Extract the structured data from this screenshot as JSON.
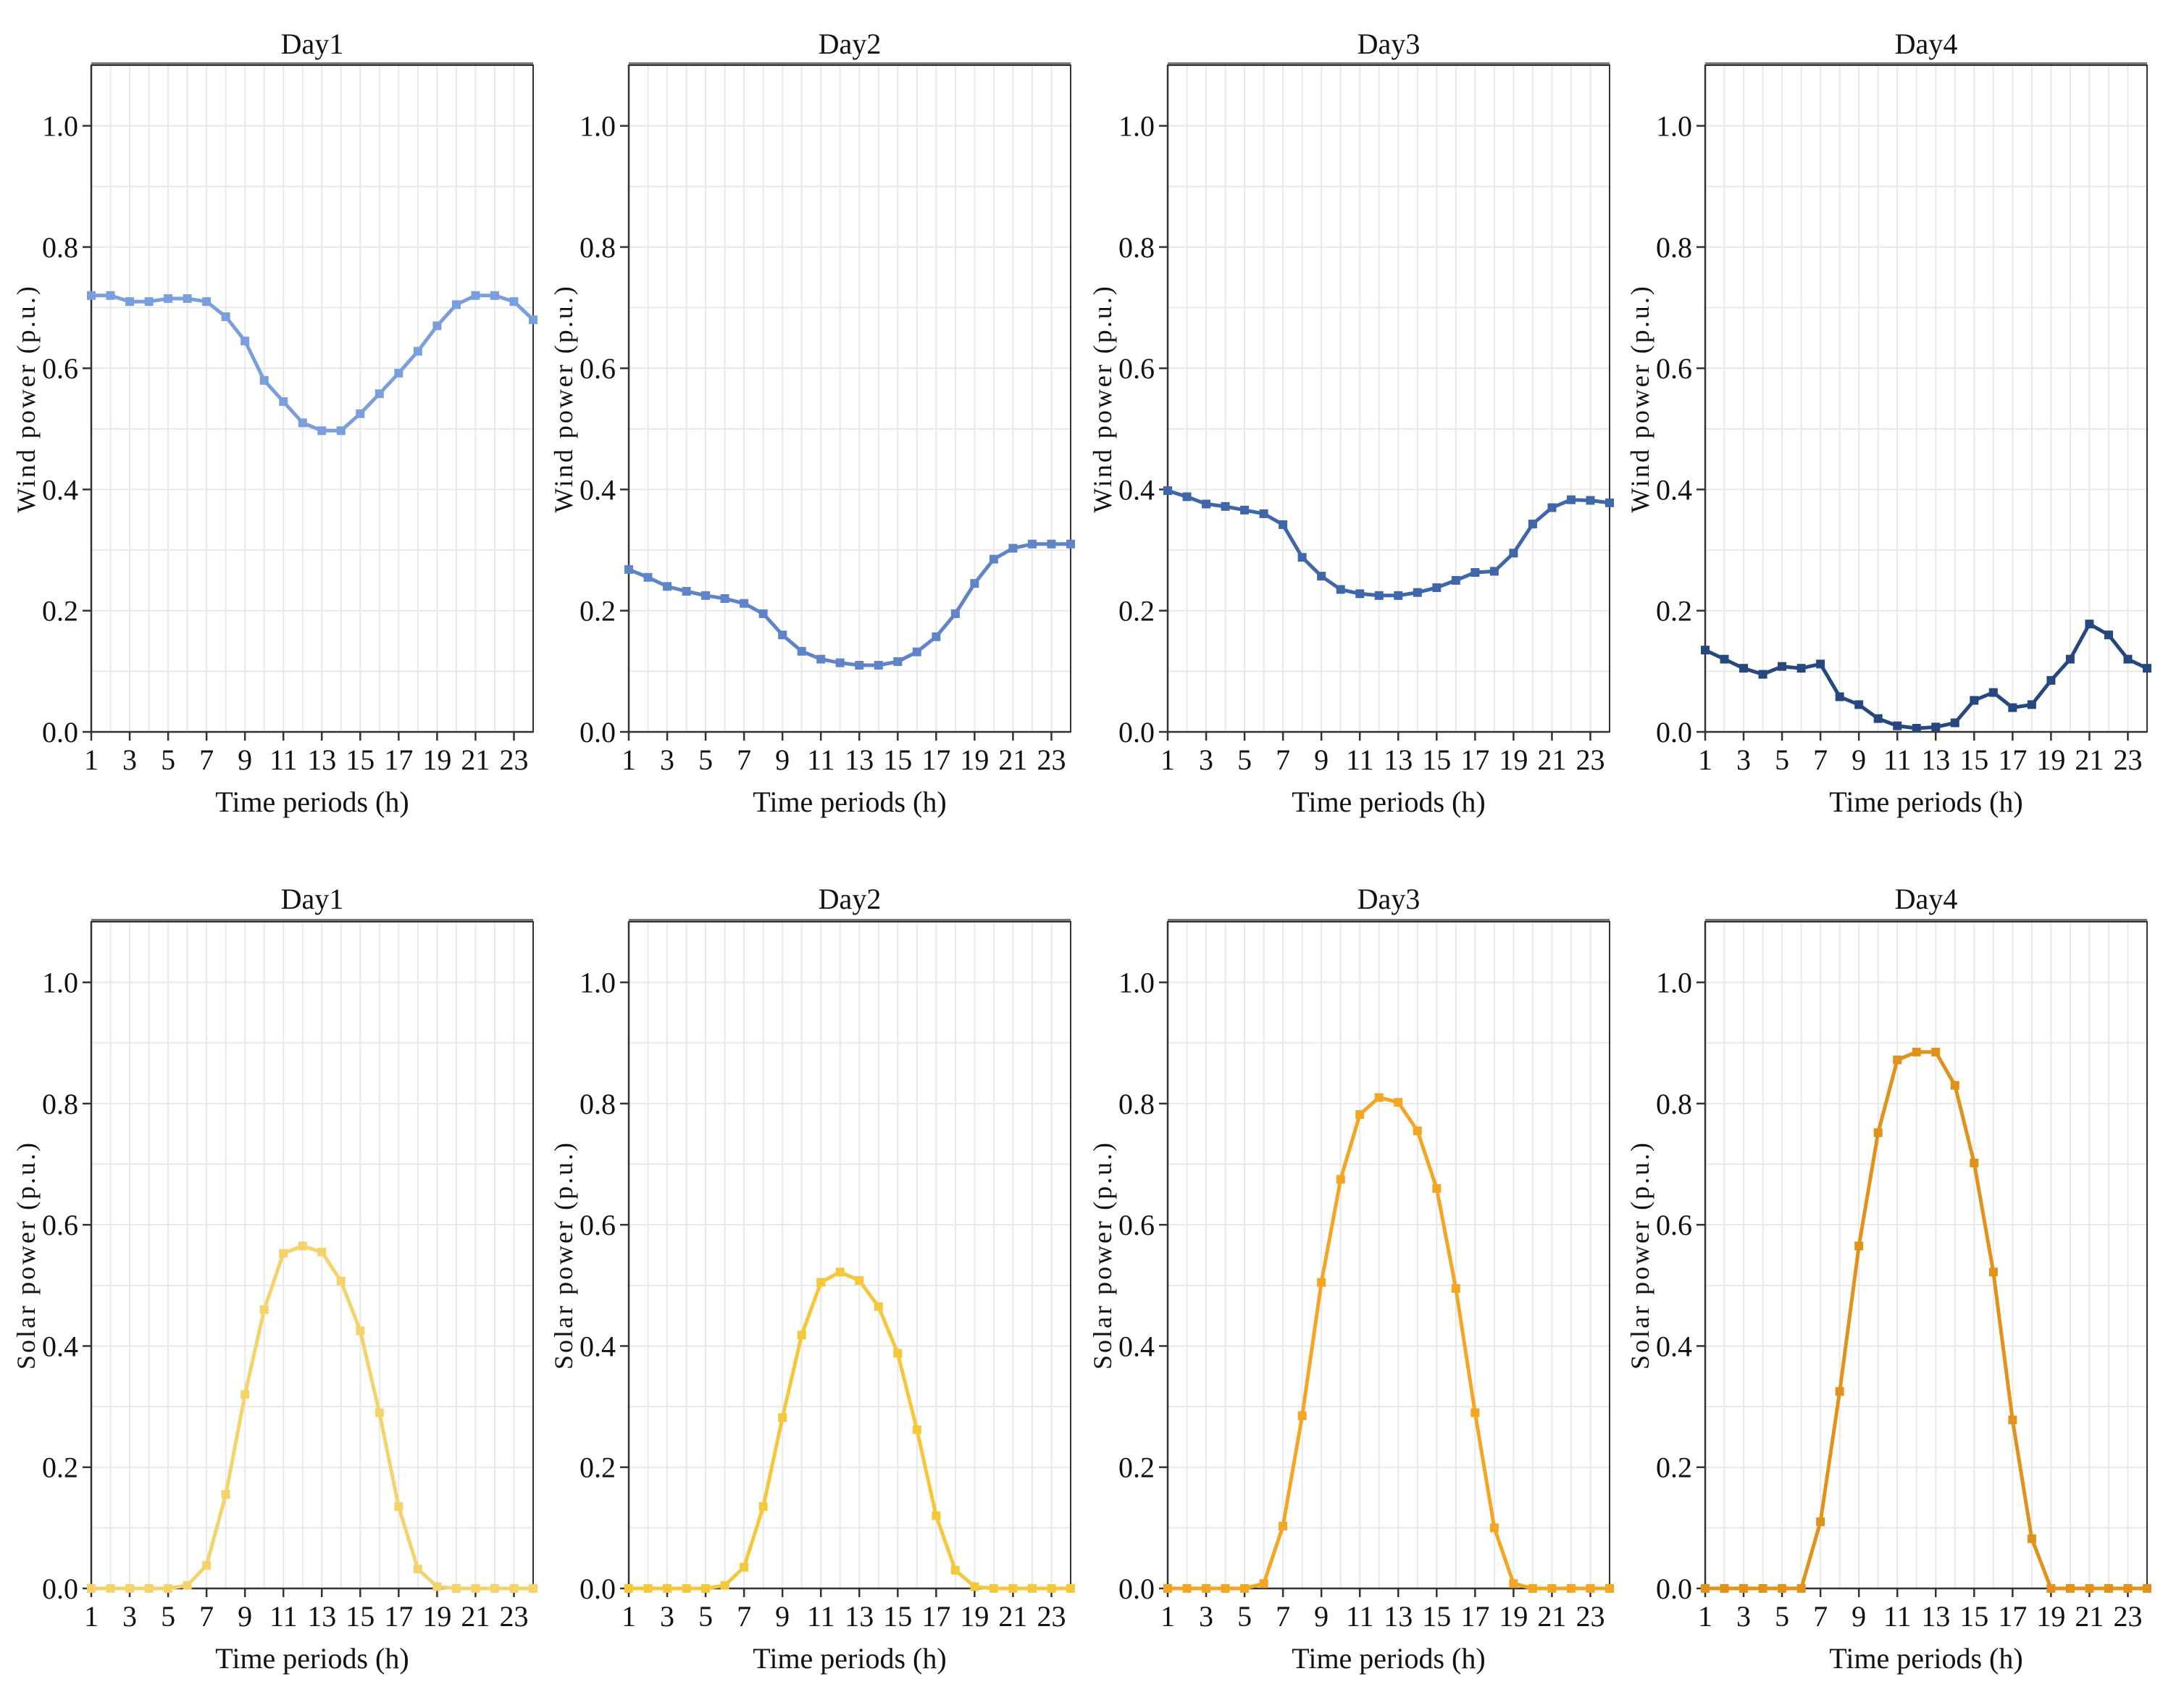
{
  "chart_data": [
    {
      "type": "line",
      "group": "wind",
      "title": "Day1",
      "xlabel": "Time periods (h)",
      "ylabel": "Wind power (p.u.)",
      "xlim": [
        1,
        24
      ],
      "ylim": [
        0,
        1.1
      ],
      "xticks": [
        1,
        3,
        5,
        7,
        9,
        11,
        13,
        15,
        17,
        19,
        21,
        23
      ],
      "yticks": [
        0.0,
        0.2,
        0.4,
        0.6,
        0.8,
        1.0
      ],
      "ytick_labels": [
        "0.0",
        "0.2",
        "0.4",
        "0.6",
        "0.8",
        "1.0"
      ],
      "color": "#7b9fdc",
      "marker": "square",
      "grid": true,
      "x": [
        1,
        2,
        3,
        4,
        5,
        6,
        7,
        8,
        9,
        10,
        11,
        12,
        13,
        14,
        15,
        16,
        17,
        18,
        19,
        20,
        21,
        22,
        23,
        24
      ],
      "y": [
        0.72,
        0.72,
        0.71,
        0.71,
        0.715,
        0.715,
        0.71,
        0.685,
        0.645,
        0.58,
        0.545,
        0.51,
        0.497,
        0.497,
        0.525,
        0.558,
        0.592,
        0.628,
        0.67,
        0.705,
        0.72,
        0.72,
        0.71,
        0.68
      ]
    },
    {
      "type": "line",
      "group": "wind",
      "title": "Day2",
      "xlabel": "Time periods (h)",
      "ylabel": "Wind power (p.u.)",
      "xlim": [
        1,
        24
      ],
      "ylim": [
        0,
        1.1
      ],
      "xticks": [
        1,
        3,
        5,
        7,
        9,
        11,
        13,
        15,
        17,
        19,
        21,
        23
      ],
      "yticks": [
        0.0,
        0.2,
        0.4,
        0.6,
        0.8,
        1.0
      ],
      "ytick_labels": [
        "0.0",
        "0.2",
        "0.4",
        "0.6",
        "0.8",
        "1.0"
      ],
      "color": "#5f84c8",
      "marker": "square",
      "grid": true,
      "x": [
        1,
        2,
        3,
        4,
        5,
        6,
        7,
        8,
        9,
        10,
        11,
        12,
        13,
        14,
        15,
        16,
        17,
        18,
        19,
        20,
        21,
        22,
        23,
        24
      ],
      "y": [
        0.268,
        0.255,
        0.24,
        0.232,
        0.225,
        0.22,
        0.212,
        0.195,
        0.16,
        0.133,
        0.12,
        0.114,
        0.11,
        0.11,
        0.116,
        0.132,
        0.157,
        0.195,
        0.245,
        0.285,
        0.303,
        0.31,
        0.31,
        0.31
      ]
    },
    {
      "type": "line",
      "group": "wind",
      "title": "Day3",
      "xlabel": "Time periods (h)",
      "ylabel": "Wind power (p.u.)",
      "xlim": [
        1,
        24
      ],
      "ylim": [
        0,
        1.1
      ],
      "xticks": [
        1,
        3,
        5,
        7,
        9,
        11,
        13,
        15,
        17,
        19,
        21,
        23
      ],
      "yticks": [
        0.0,
        0.2,
        0.4,
        0.6,
        0.8,
        1.0
      ],
      "ytick_labels": [
        "0.0",
        "0.2",
        "0.4",
        "0.6",
        "0.8",
        "1.0"
      ],
      "color": "#3e66a8",
      "marker": "square",
      "grid": true,
      "x": [
        1,
        2,
        3,
        4,
        5,
        6,
        7,
        8,
        9,
        10,
        11,
        12,
        13,
        14,
        15,
        16,
        17,
        18,
        19,
        20,
        21,
        22,
        23,
        24
      ],
      "y": [
        0.398,
        0.388,
        0.376,
        0.372,
        0.366,
        0.36,
        0.342,
        0.288,
        0.257,
        0.235,
        0.228,
        0.225,
        0.225,
        0.23,
        0.238,
        0.25,
        0.263,
        0.265,
        0.295,
        0.343,
        0.37,
        0.383,
        0.382,
        0.378
      ]
    },
    {
      "type": "line",
      "group": "wind",
      "title": "Day4",
      "xlabel": "Time periods (h)",
      "ylabel": "Wind power (p.u.)",
      "xlim": [
        1,
        24
      ],
      "ylim": [
        0,
        1.1
      ],
      "xticks": [
        1,
        3,
        5,
        7,
        9,
        11,
        13,
        15,
        17,
        19,
        21,
        23
      ],
      "yticks": [
        0.0,
        0.2,
        0.4,
        0.6,
        0.8,
        1.0
      ],
      "ytick_labels": [
        "0.0",
        "0.2",
        "0.4",
        "0.6",
        "0.8",
        "1.0"
      ],
      "color": "#27487e",
      "marker": "square",
      "grid": true,
      "x": [
        1,
        2,
        3,
        4,
        5,
        6,
        7,
        8,
        9,
        10,
        11,
        12,
        13,
        14,
        15,
        16,
        17,
        18,
        19,
        20,
        21,
        22,
        23,
        24
      ],
      "y": [
        0.135,
        0.12,
        0.105,
        0.095,
        0.108,
        0.105,
        0.112,
        0.058,
        0.045,
        0.022,
        0.01,
        0.006,
        0.008,
        0.015,
        0.052,
        0.065,
        0.04,
        0.045,
        0.085,
        0.12,
        0.178,
        0.16,
        0.12,
        0.105
      ]
    },
    {
      "type": "line",
      "group": "solar",
      "title": "Day1",
      "xlabel": "Time periods (h)",
      "ylabel": "Solar power (p.u.)",
      "xlim": [
        1,
        24
      ],
      "ylim": [
        0,
        1.1
      ],
      "xticks": [
        1,
        3,
        5,
        7,
        9,
        11,
        13,
        15,
        17,
        19,
        21,
        23
      ],
      "yticks": [
        0.0,
        0.2,
        0.4,
        0.6,
        0.8,
        1.0
      ],
      "ytick_labels": [
        "0.0",
        "0.2",
        "0.4",
        "0.6",
        "0.8",
        "1.0"
      ],
      "color": "#f5d36c",
      "marker": "square",
      "grid": true,
      "x": [
        1,
        2,
        3,
        4,
        5,
        6,
        7,
        8,
        9,
        10,
        11,
        12,
        13,
        14,
        15,
        16,
        17,
        18,
        19,
        20,
        21,
        22,
        23,
        24
      ],
      "y": [
        0,
        0,
        0,
        0,
        0,
        0.005,
        0.038,
        0.155,
        0.32,
        0.46,
        0.553,
        0.565,
        0.555,
        0.507,
        0.425,
        0.29,
        0.135,
        0.032,
        0.003,
        0,
        0,
        0,
        0,
        0
      ]
    },
    {
      "type": "line",
      "group": "solar",
      "title": "Day2",
      "xlabel": "Time periods (h)",
      "ylabel": "Solar power (p.u.)",
      "xlim": [
        1,
        24
      ],
      "ylim": [
        0,
        1.1
      ],
      "xticks": [
        1,
        3,
        5,
        7,
        9,
        11,
        13,
        15,
        17,
        19,
        21,
        23
      ],
      "yticks": [
        0.0,
        0.2,
        0.4,
        0.6,
        0.8,
        1.0
      ],
      "ytick_labels": [
        "0.0",
        "0.2",
        "0.4",
        "0.6",
        "0.8",
        "1.0"
      ],
      "color": "#f5c73b",
      "marker": "square",
      "grid": true,
      "x": [
        1,
        2,
        3,
        4,
        5,
        6,
        7,
        8,
        9,
        10,
        11,
        12,
        13,
        14,
        15,
        16,
        17,
        18,
        19,
        20,
        21,
        22,
        23,
        24
      ],
      "y": [
        0,
        0,
        0,
        0,
        0,
        0.005,
        0.035,
        0.135,
        0.282,
        0.418,
        0.505,
        0.522,
        0.508,
        0.465,
        0.388,
        0.262,
        0.12,
        0.03,
        0.003,
        0,
        0,
        0,
        0,
        0
      ]
    },
    {
      "type": "line",
      "group": "solar",
      "title": "Day3",
      "xlabel": "Time periods (h)",
      "ylabel": "Solar power (p.u.)",
      "xlim": [
        1,
        24
      ],
      "ylim": [
        0,
        1.1
      ],
      "xticks": [
        1,
        3,
        5,
        7,
        9,
        11,
        13,
        15,
        17,
        19,
        21,
        23
      ],
      "yticks": [
        0.0,
        0.2,
        0.4,
        0.6,
        0.8,
        1.0
      ],
      "ytick_labels": [
        "0.0",
        "0.2",
        "0.4",
        "0.6",
        "0.8",
        "1.0"
      ],
      "color": "#f2a624",
      "marker": "square",
      "grid": true,
      "x": [
        1,
        2,
        3,
        4,
        5,
        6,
        7,
        8,
        9,
        10,
        11,
        12,
        13,
        14,
        15,
        16,
        17,
        18,
        19,
        20,
        21,
        22,
        23,
        24
      ],
      "y": [
        0,
        0,
        0,
        0,
        0,
        0.008,
        0.103,
        0.285,
        0.505,
        0.675,
        0.782,
        0.81,
        0.802,
        0.755,
        0.66,
        0.495,
        0.29,
        0.1,
        0.008,
        0,
        0,
        0,
        0,
        0
      ]
    },
    {
      "type": "line",
      "group": "solar",
      "title": "Day4",
      "xlabel": "Time periods (h)",
      "ylabel": "Solar power (p.u.)",
      "xlim": [
        1,
        24
      ],
      "ylim": [
        0,
        1.1
      ],
      "xticks": [
        1,
        3,
        5,
        7,
        9,
        11,
        13,
        15,
        17,
        19,
        21,
        23
      ],
      "yticks": [
        0.0,
        0.2,
        0.4,
        0.6,
        0.8,
        1.0
      ],
      "ytick_labels": [
        "0.0",
        "0.2",
        "0.4",
        "0.6",
        "0.8",
        "1.0"
      ],
      "color": "#e0921c",
      "marker": "square",
      "grid": true,
      "x": [
        1,
        2,
        3,
        4,
        5,
        6,
        7,
        8,
        9,
        10,
        11,
        12,
        13,
        14,
        15,
        16,
        17,
        18,
        19,
        20,
        21,
        22,
        23,
        24
      ],
      "y": [
        0,
        0,
        0,
        0,
        0,
        0,
        0.11,
        0.325,
        0.565,
        0.752,
        0.872,
        0.885,
        0.885,
        0.83,
        0.702,
        0.522,
        0.278,
        0.082,
        0,
        0,
        0,
        0,
        0,
        0
      ]
    }
  ]
}
